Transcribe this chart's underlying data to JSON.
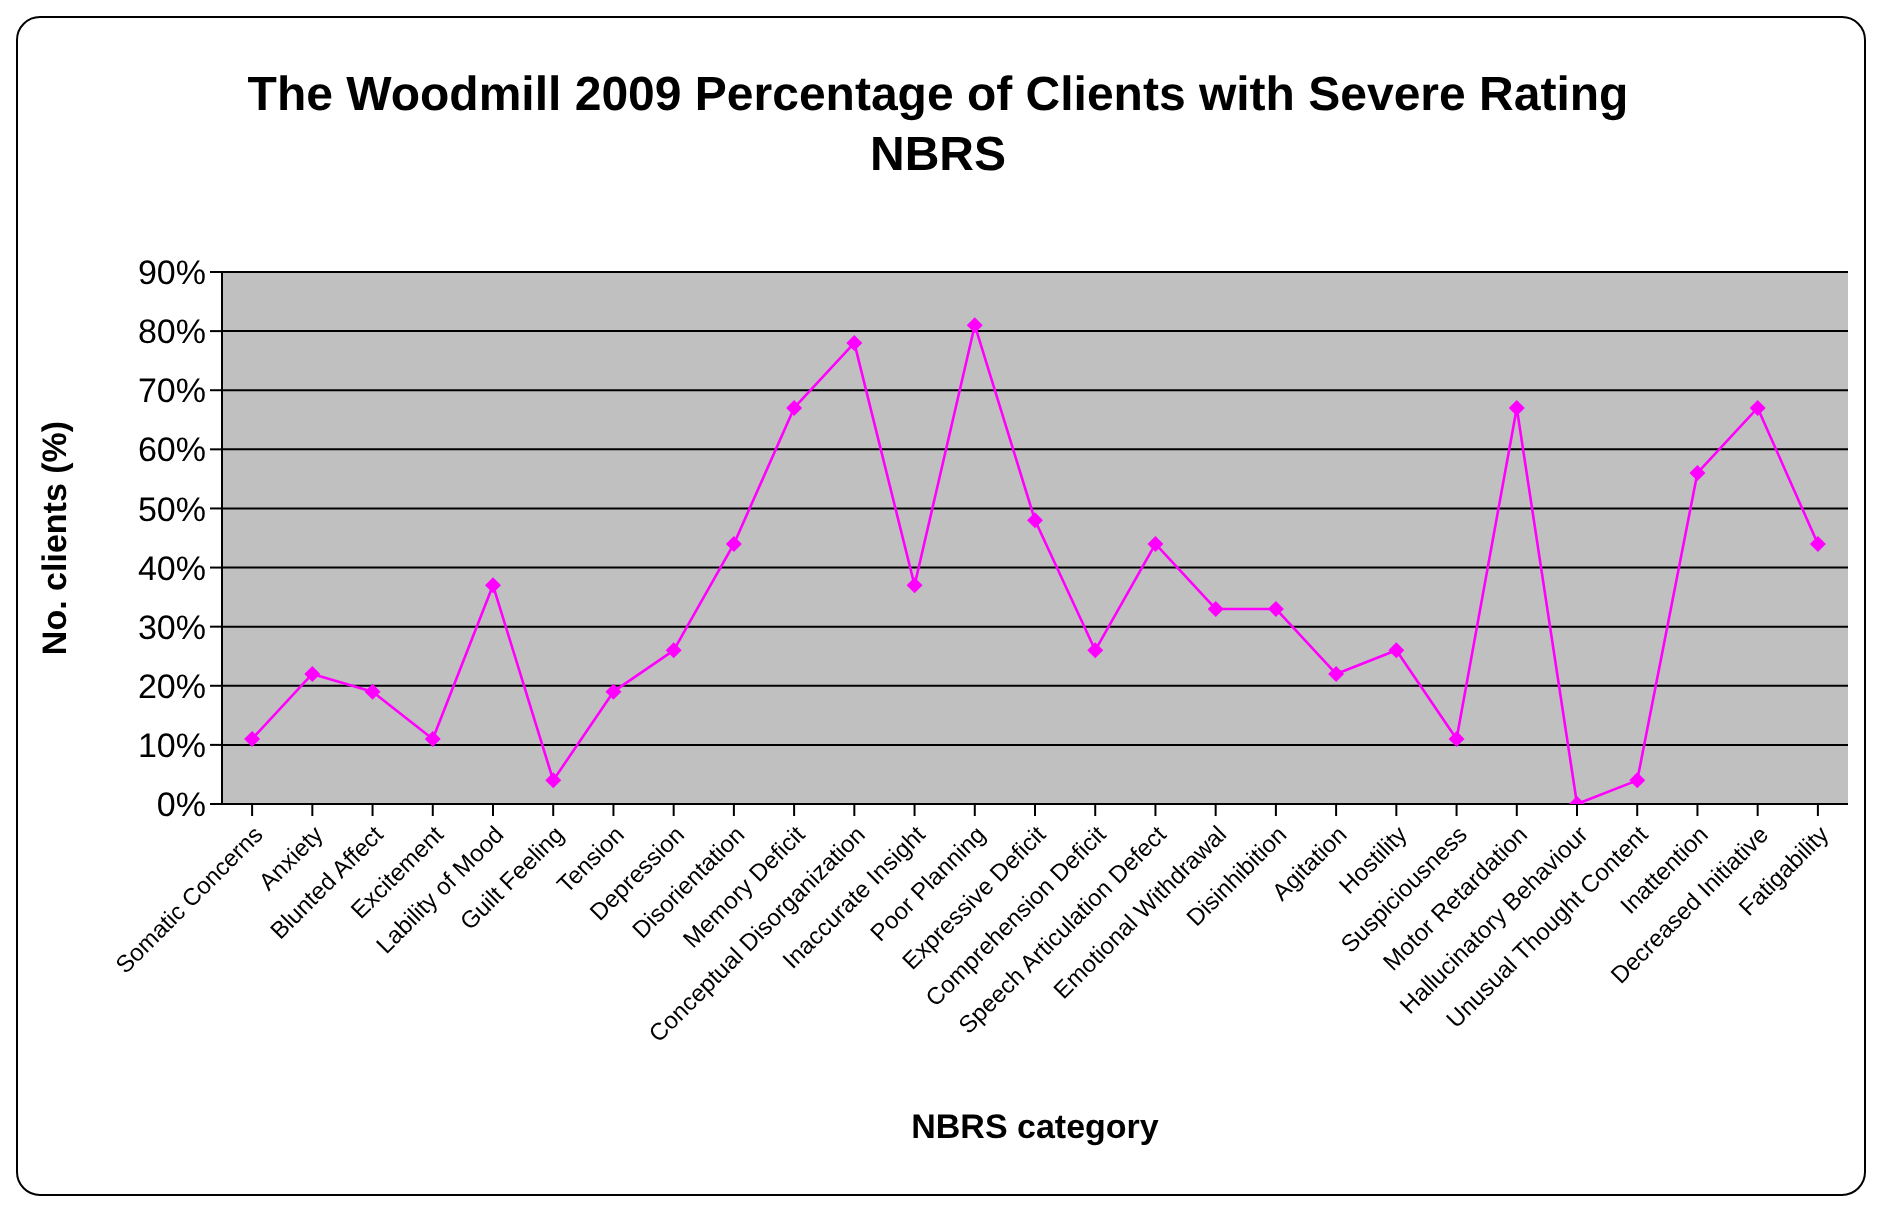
{
  "chart_data": {
    "type": "line",
    "title": "The Woodmill 2009 Percentage of Clients with Severe Rating NBRS",
    "xlabel": "NBRS category",
    "ylabel": "No. clients (%)",
    "categories": [
      "Somatic Concerns",
      "Anxiety",
      "Blunted Affect",
      "Excitement",
      "Lability of Mood",
      "Guilt Feeling",
      "Tension",
      "Depression",
      "Disorientation",
      "Memory Deficit",
      "Conceptual Disorganization",
      "Inaccurate Insight",
      "Poor Planning",
      "Expressive Deficit",
      "Comprehension Deficit",
      "Speech Articulation Defect",
      "Emotional Withdrawal",
      "Disinhibition",
      "Agitation",
      "Hostility",
      "Suspiciousness",
      "Motor Retardation",
      "Hallucinatory Behaviour",
      "Unusual Thought Content",
      "Inattention",
      "Decreased Initiative",
      "Fatigability"
    ],
    "series": [
      {
        "color": "#ff00ff",
        "values": [
          11,
          22,
          19,
          11,
          37,
          4,
          19,
          26,
          44,
          67,
          78,
          37,
          81,
          48,
          26,
          44,
          33,
          33,
          22,
          26,
          11,
          67,
          0,
          4,
          56,
          67,
          44
        ]
      }
    ],
    "ylim": [
      0,
      90
    ],
    "yticks": [
      {
        "value": 0,
        "label": "0%"
      },
      {
        "value": 10,
        "label": "10%"
      },
      {
        "value": 20,
        "label": "20%"
      },
      {
        "value": 30,
        "label": "30%"
      },
      {
        "value": 40,
        "label": "40%"
      },
      {
        "value": 50,
        "label": "50%"
      },
      {
        "value": 60,
        "label": "60%"
      },
      {
        "value": 70,
        "label": "70%"
      },
      {
        "value": 80,
        "label": "80%"
      },
      {
        "value": 90,
        "label": "90%"
      }
    ],
    "grid": "y",
    "marker": "diamond",
    "line_style": "solid"
  }
}
